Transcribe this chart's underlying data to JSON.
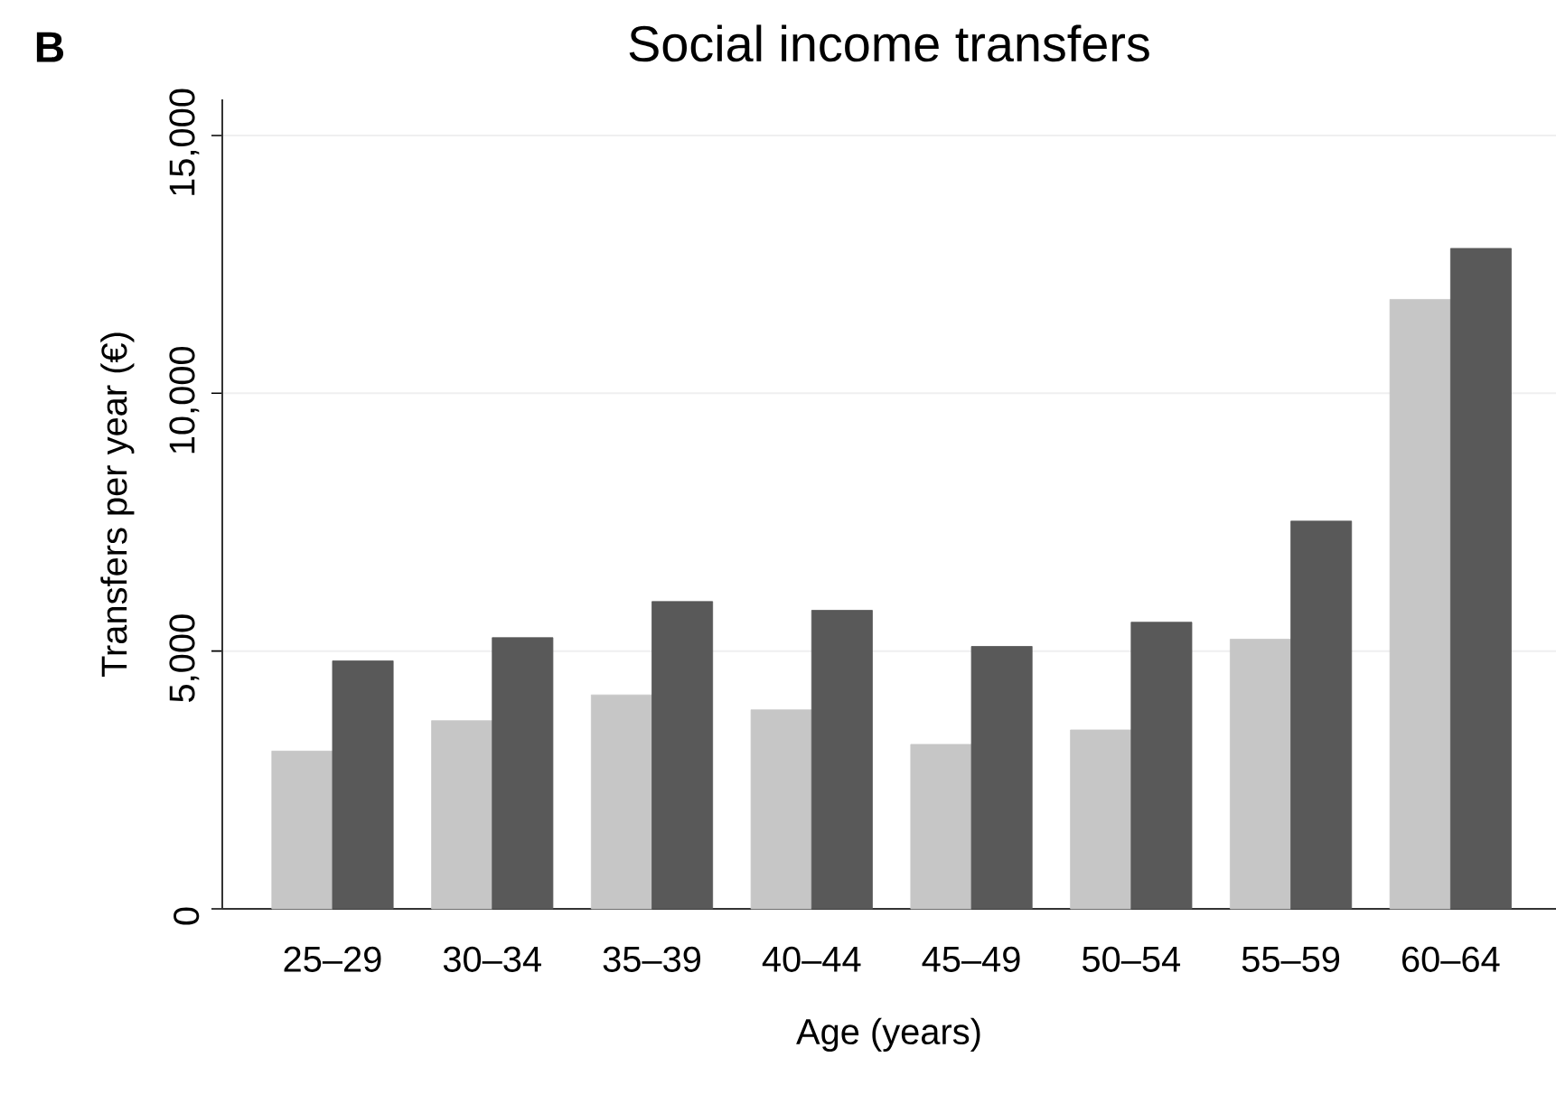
{
  "chart_data": {
    "type": "bar",
    "title": "Social income transfers",
    "xlabel": "Age (years)",
    "ylabel": "Transfers per year (€)",
    "annotations": [
      "B"
    ],
    "categories": [
      "25–29",
      "30–34",
      "35–39",
      "40–44",
      "45–49",
      "50–54",
      "55–59",
      "60–64"
    ],
    "series": [
      {
        "color": "#c6c6c6",
        "values": [
          3060,
          3650,
          4150,
          3860,
          3190,
          3470,
          5230,
          11820
        ]
      },
      {
        "color": "#595959",
        "values": [
          4810,
          5260,
          5960,
          5790,
          5090,
          5560,
          7520,
          12810
        ]
      }
    ],
    "ylim": [
      0,
      15700
    ],
    "yticks": [
      0,
      {
        "value": 5000,
        "label": "5,000"
      },
      {
        "value": 10000,
        "label": "10,000"
      },
      {
        "value": 15000,
        "label": "15,000"
      }
    ],
    "grid": "y"
  }
}
